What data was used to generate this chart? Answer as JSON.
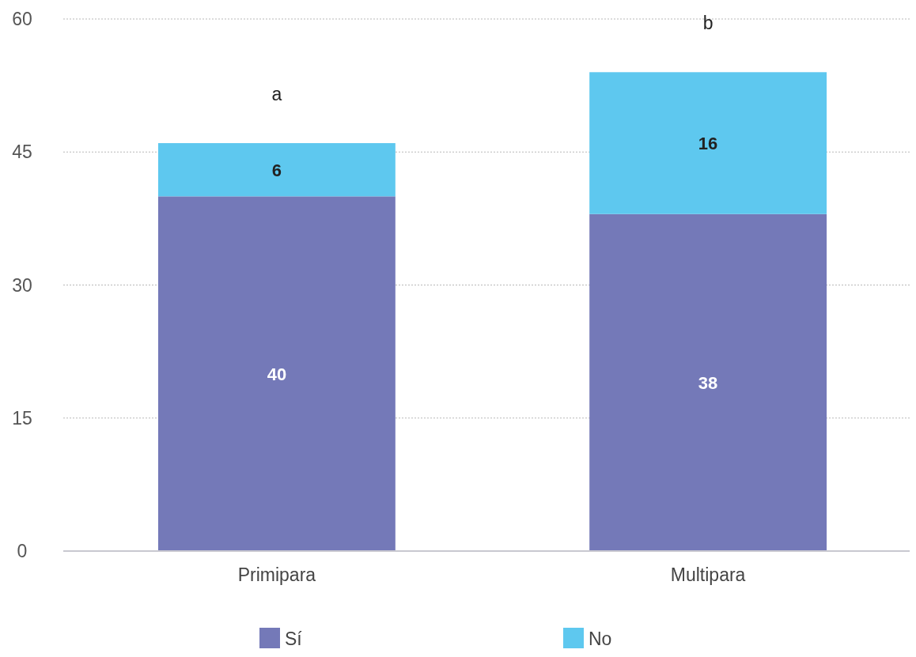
{
  "chart_data": {
    "type": "bar",
    "stacked": true,
    "categories": [
      "Primipara",
      "Multipara"
    ],
    "series": [
      {
        "name": "Sí",
        "color": "#7479b8",
        "values": [
          40,
          38
        ]
      },
      {
        "name": "No",
        "color": "#5ec8ef",
        "values": [
          6,
          16
        ]
      }
    ],
    "ylim": [
      0,
      60
    ],
    "yticks": [
      0,
      15,
      30,
      45,
      60
    ],
    "grid": "y",
    "legend": "bottom",
    "data_labels": true,
    "annotations": [
      "a",
      "b"
    ]
  }
}
